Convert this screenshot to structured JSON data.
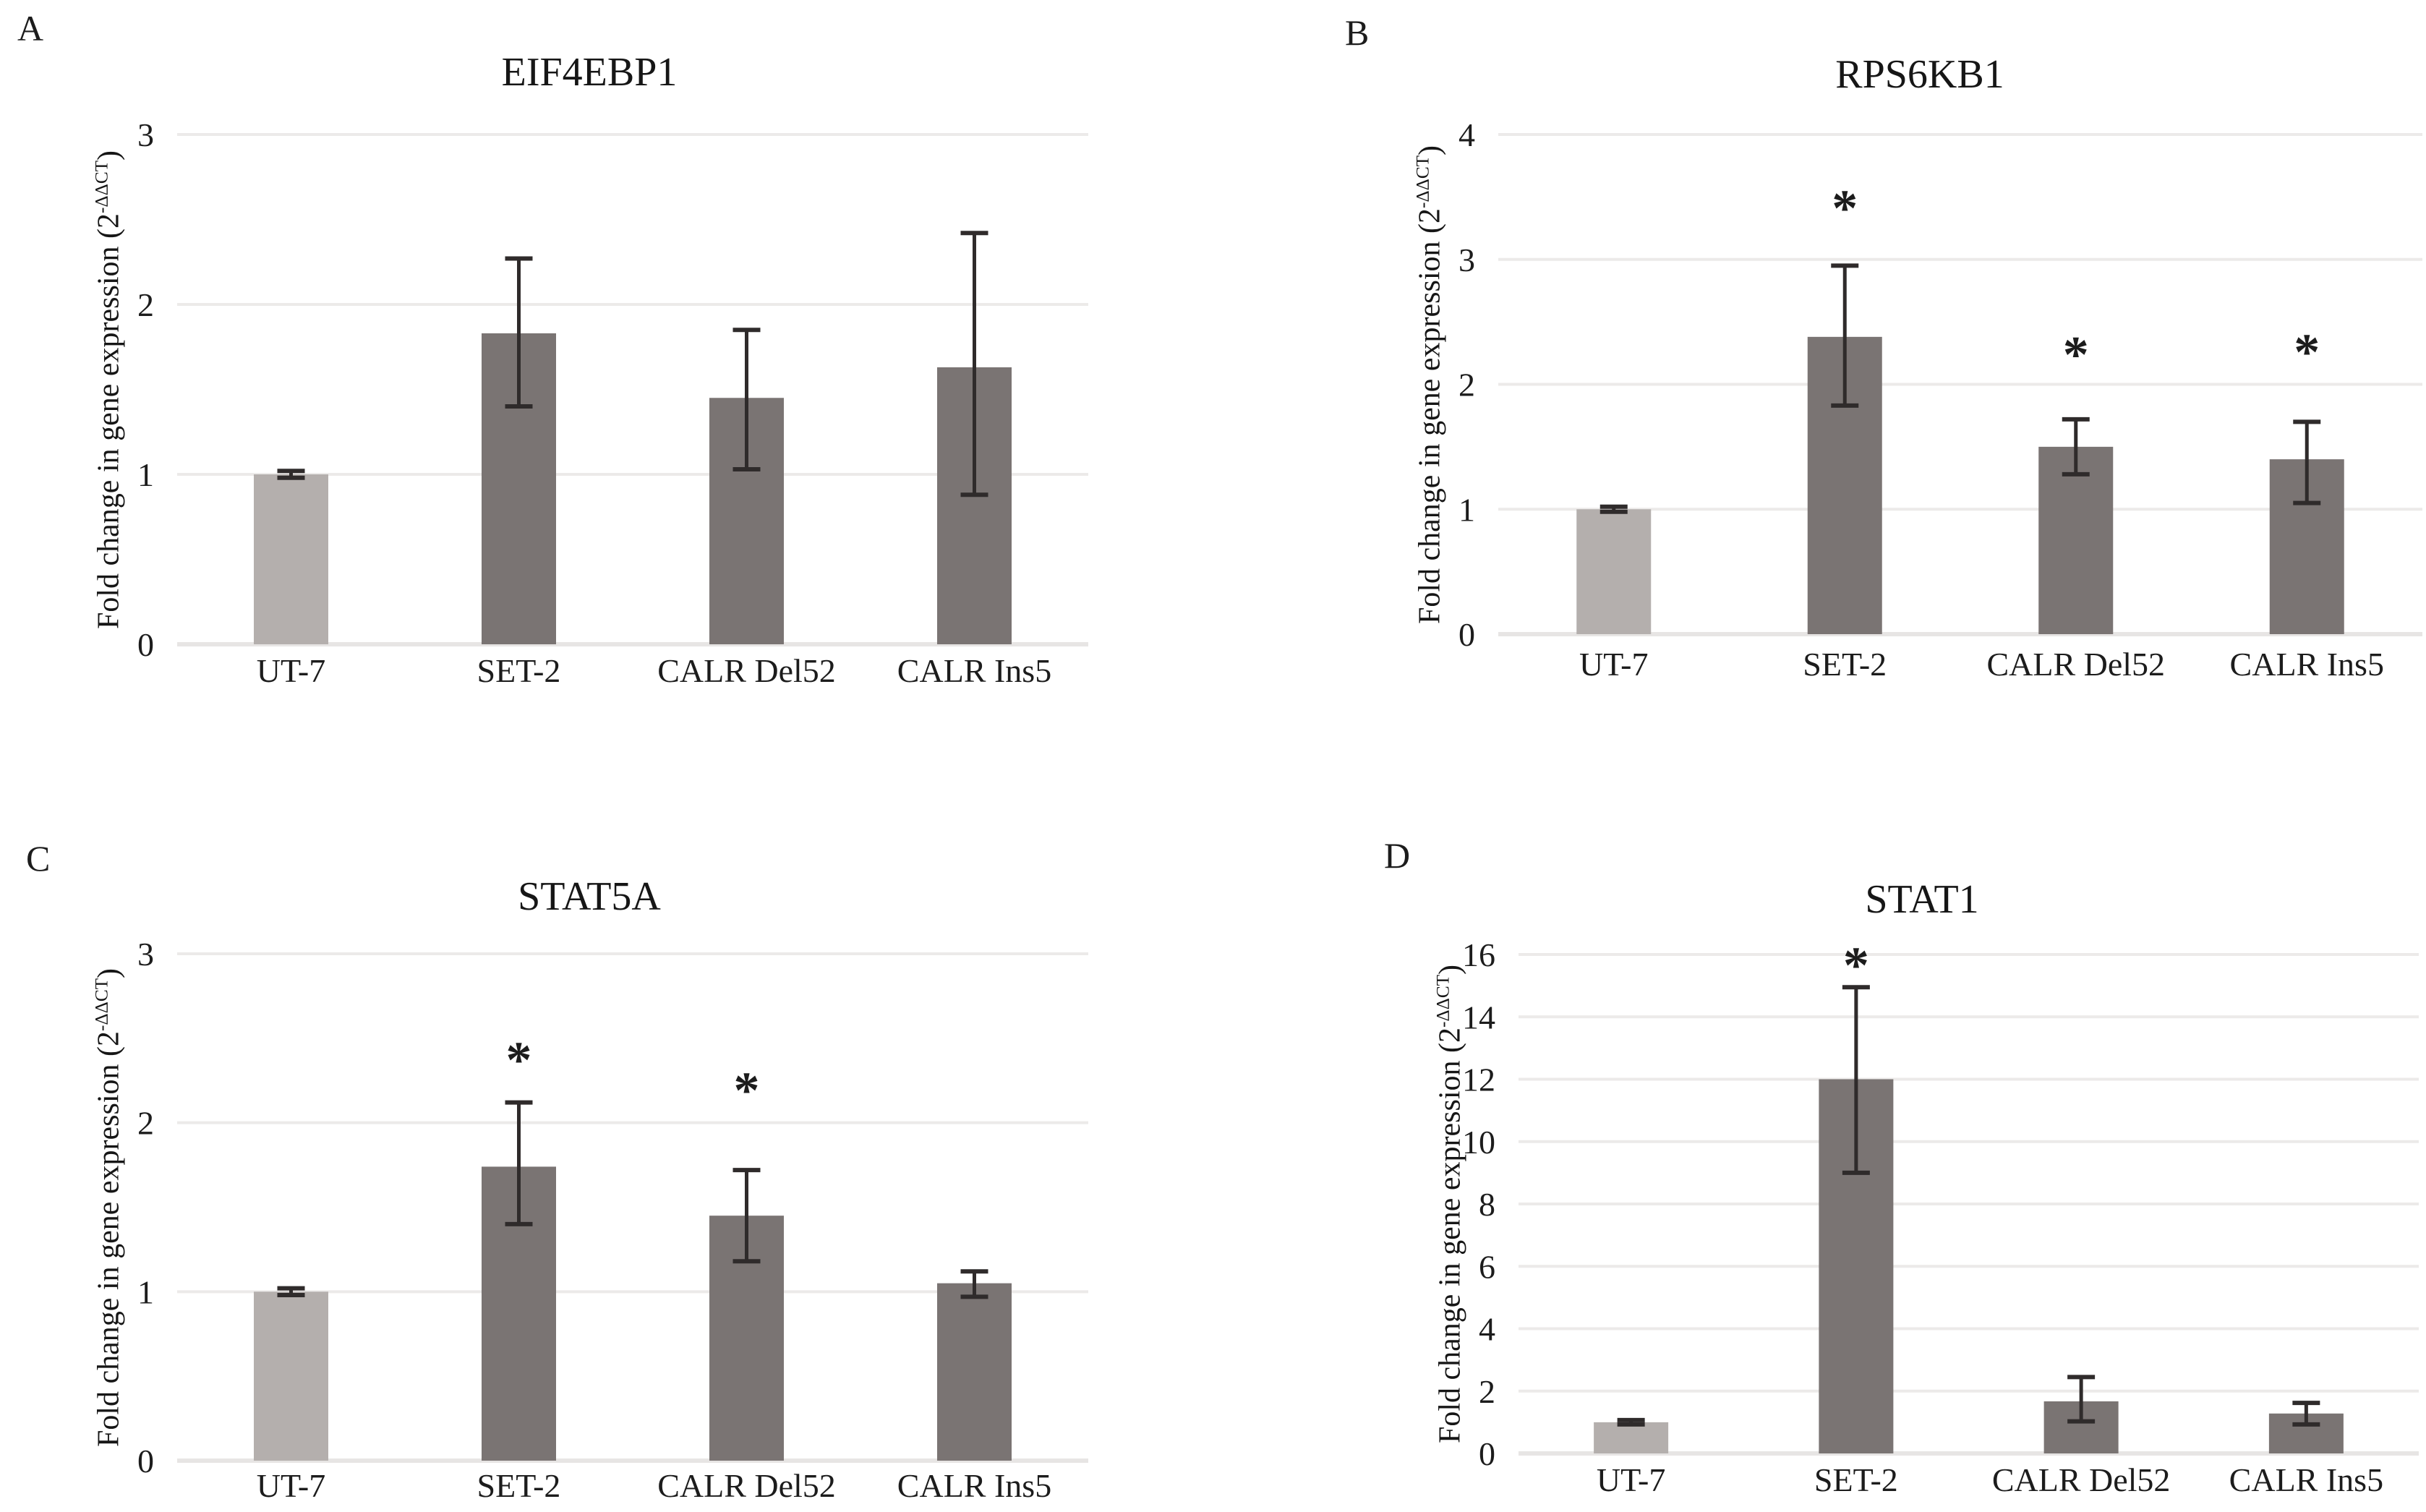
{
  "figure": {
    "background": "#ffffff",
    "y_label_prefix": "Fold change in gene expression (2",
    "y_label_sup": "-ΔΔCT",
    "y_label_suffix": ")",
    "significance_marker": "*"
  },
  "colors": {
    "control_bar": "#b4afad",
    "sample_bar": "#7a7473",
    "gridline": "#eceae9",
    "axis_line": "#e7e5e4",
    "error_bar": "#2f2b2b",
    "text": "#1c1c1c"
  },
  "chart_data": [
    {
      "panel_letter": "A",
      "title": "EIF4EBP1",
      "type": "bar",
      "categories": [
        "UT-7",
        "SET-2",
        "CALR Del52",
        "CALR Ins5"
      ],
      "values": [
        1.0,
        1.83,
        1.45,
        1.63
      ],
      "error_low": [
        0.98,
        1.4,
        1.03,
        0.88
      ],
      "error_high": [
        1.02,
        2.27,
        1.85,
        2.42
      ],
      "significance_y": [
        null,
        null,
        null,
        null
      ],
      "ylabel": "Fold change in gene expression (2^-ΔΔCT)",
      "xlabel": "",
      "ylim": [
        0,
        3
      ],
      "ytick_step": 1,
      "grid": true,
      "legend": "none"
    },
    {
      "panel_letter": "B",
      "title": "RPS6KB1",
      "type": "bar",
      "categories": [
        "UT-7",
        "SET-2",
        "CALR Del52",
        "CALR Ins5"
      ],
      "values": [
        1.0,
        2.38,
        1.5,
        1.4
      ],
      "error_low": [
        0.98,
        1.83,
        1.28,
        1.05
      ],
      "error_high": [
        1.02,
        2.95,
        1.72,
        1.7
      ],
      "significance_y": [
        null,
        3.42,
        2.25,
        2.27
      ],
      "ylabel": "Fold change in gene expression (2^-ΔΔCT)",
      "xlabel": "",
      "ylim": [
        0,
        4
      ],
      "ytick_step": 1,
      "grid": true,
      "legend": "none"
    },
    {
      "panel_letter": "C",
      "title": "STAT5A",
      "type": "bar",
      "categories": [
        "UT-7",
        "SET-2",
        "CALR Del52",
        "CALR Ins5"
      ],
      "values": [
        1.0,
        1.74,
        1.45,
        1.05
      ],
      "error_low": [
        0.98,
        1.4,
        1.18,
        0.97
      ],
      "error_high": [
        1.02,
        2.12,
        1.72,
        1.12
      ],
      "significance_y": [
        null,
        2.38,
        2.2,
        null
      ],
      "ylabel": "Fold change in gene expression (2^-ΔΔCT)",
      "xlabel": "",
      "ylim": [
        0,
        3
      ],
      "ytick_step": 1,
      "grid": true,
      "legend": "none"
    },
    {
      "panel_letter": "D",
      "title": "STAT1",
      "type": "bar",
      "categories": [
        "UT-7",
        "SET-2",
        "CALR Del52",
        "CALR Ins5"
      ],
      "values": [
        1.0,
        12.0,
        1.67,
        1.28
      ],
      "error_low": [
        0.93,
        9.0,
        1.03,
        0.93
      ],
      "error_high": [
        1.07,
        14.95,
        2.45,
        1.62
      ],
      "significance_y": [
        null,
        15.7,
        null,
        null
      ],
      "ylabel": "Fold change in gene expression (2^-ΔΔCT)",
      "xlabel": "",
      "ylim": [
        0,
        16
      ],
      "ytick_step": 2,
      "grid": true,
      "legend": "none"
    }
  ]
}
